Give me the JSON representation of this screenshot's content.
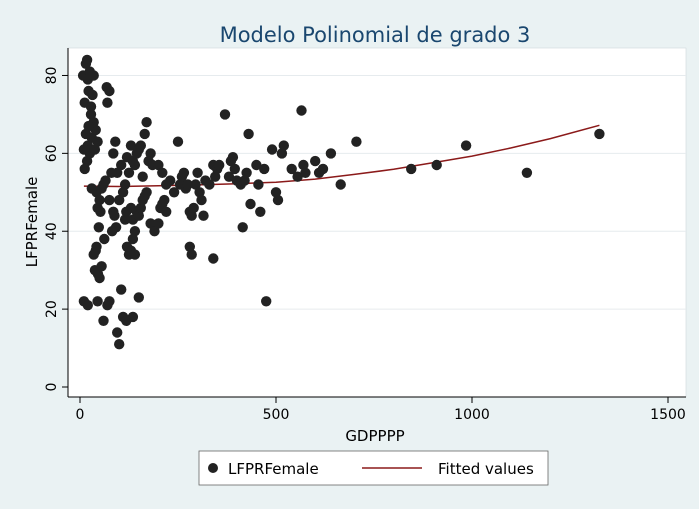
{
  "chart_data": {
    "type": "scatter",
    "title": "Modelo Polinomial de grado 3",
    "xlabel": "GDPPPP",
    "ylabel": "LFPRFemale",
    "xlim": [
      0,
      1500
    ],
    "ylim": [
      0,
      85
    ],
    "xticks": [
      0,
      500,
      1000,
      1500
    ],
    "yticks": [
      0,
      20,
      40,
      60,
      80
    ],
    "grid": "horizontal",
    "legend_position": "bottom",
    "colors": {
      "background": "#eaf2f3",
      "plot_background": "#ffffff",
      "markers": "#222222",
      "fit_line": "#8b1a1a",
      "title": "#1a476f"
    },
    "series": [
      {
        "name": "LFPRFemale",
        "type": "scatter",
        "points": [
          [
            8,
            80
          ],
          [
            12,
            73
          ],
          [
            15,
            83
          ],
          [
            18,
            84
          ],
          [
            20,
            79
          ],
          [
            22,
            76
          ],
          [
            25,
            81
          ],
          [
            28,
            72
          ],
          [
            32,
            75
          ],
          [
            35,
            80
          ],
          [
            15,
            65
          ],
          [
            20,
            62
          ],
          [
            25,
            60
          ],
          [
            12,
            56
          ],
          [
            18,
            58
          ],
          [
            30,
            64
          ],
          [
            35,
            68
          ],
          [
            40,
            66
          ],
          [
            28,
            70
          ],
          [
            22,
            67
          ],
          [
            10,
            61
          ],
          [
            38,
            61
          ],
          [
            45,
            63
          ],
          [
            42,
            50
          ],
          [
            50,
            48
          ],
          [
            55,
            51
          ],
          [
            30,
            51
          ],
          [
            60,
            52
          ],
          [
            65,
            53
          ],
          [
            70,
            73
          ],
          [
            75,
            76
          ],
          [
            68,
            77
          ],
          [
            45,
            46
          ],
          [
            48,
            41
          ],
          [
            52,
            45
          ],
          [
            40,
            35
          ],
          [
            35,
            34
          ],
          [
            42,
            36
          ],
          [
            46,
            29
          ],
          [
            38,
            30
          ],
          [
            50,
            28
          ],
          [
            55,
            31
          ],
          [
            62,
            38
          ],
          [
            10,
            22
          ],
          [
            20,
            21
          ],
          [
            45,
            22
          ],
          [
            60,
            17
          ],
          [
            70,
            21
          ],
          [
            75,
            22
          ],
          [
            95,
            14
          ],
          [
            100,
            11
          ],
          [
            105,
            25
          ],
          [
            110,
            18
          ],
          [
            118,
            17
          ],
          [
            135,
            18
          ],
          [
            150,
            23
          ],
          [
            85,
            60
          ],
          [
            90,
            63
          ],
          [
            95,
            55
          ],
          [
            100,
            48
          ],
          [
            105,
            57
          ],
          [
            110,
            50
          ],
          [
            115,
            52
          ],
          [
            120,
            59
          ],
          [
            125,
            55
          ],
          [
            130,
            62
          ],
          [
            135,
            58
          ],
          [
            140,
            57
          ],
          [
            145,
            60
          ],
          [
            150,
            61
          ],
          [
            155,
            62
          ],
          [
            160,
            54
          ],
          [
            165,
            65
          ],
          [
            170,
            68
          ],
          [
            175,
            58
          ],
          [
            180,
            60
          ],
          [
            185,
            57
          ],
          [
            130,
            46
          ],
          [
            135,
            43
          ],
          [
            140,
            40
          ],
          [
            145,
            45
          ],
          [
            150,
            44
          ],
          [
            155,
            46
          ],
          [
            160,
            48
          ],
          [
            165,
            49
          ],
          [
            170,
            50
          ],
          [
            120,
            36
          ],
          [
            125,
            34
          ],
          [
            130,
            35
          ],
          [
            135,
            38
          ],
          [
            140,
            34
          ],
          [
            115,
            43
          ],
          [
            118,
            45
          ],
          [
            180,
            42
          ],
          [
            190,
            40
          ],
          [
            200,
            42
          ],
          [
            205,
            46
          ],
          [
            210,
            47
          ],
          [
            215,
            48
          ],
          [
            220,
            45
          ],
          [
            230,
            53
          ],
          [
            240,
            50
          ],
          [
            250,
            63
          ],
          [
            255,
            52
          ],
          [
            260,
            54
          ],
          [
            265,
            55
          ],
          [
            270,
            51
          ],
          [
            275,
            52
          ],
          [
            280,
            45
          ],
          [
            285,
            44
          ],
          [
            290,
            46
          ],
          [
            295,
            52
          ],
          [
            300,
            55
          ],
          [
            305,
            50
          ],
          [
            310,
            48
          ],
          [
            320,
            53
          ],
          [
            330,
            52
          ],
          [
            340,
            57
          ],
          [
            345,
            54
          ],
          [
            350,
            56
          ],
          [
            355,
            57
          ],
          [
            370,
            70
          ],
          [
            380,
            54
          ],
          [
            385,
            58
          ],
          [
            390,
            59
          ],
          [
            395,
            56
          ],
          [
            400,
            53
          ],
          [
            410,
            52
          ],
          [
            415,
            41
          ],
          [
            420,
            53
          ],
          [
            425,
            55
          ],
          [
            430,
            65
          ],
          [
            435,
            47
          ],
          [
            450,
            57
          ],
          [
            455,
            52
          ],
          [
            460,
            45
          ],
          [
            470,
            56
          ],
          [
            475,
            22
          ],
          [
            490,
            61
          ],
          [
            500,
            50
          ],
          [
            505,
            48
          ],
          [
            515,
            60
          ],
          [
            520,
            62
          ],
          [
            540,
            56
          ],
          [
            555,
            54
          ],
          [
            565,
            71
          ],
          [
            570,
            57
          ],
          [
            575,
            55
          ],
          [
            600,
            58
          ],
          [
            610,
            55
          ],
          [
            620,
            56
          ],
          [
            640,
            60
          ],
          [
            665,
            52
          ],
          [
            705,
            63
          ],
          [
            845,
            56
          ],
          [
            910,
            57
          ],
          [
            985,
            62
          ],
          [
            1140,
            55
          ],
          [
            1325,
            65
          ],
          [
            280,
            36
          ],
          [
            285,
            34
          ],
          [
            340,
            33
          ],
          [
            315,
            44
          ],
          [
            200,
            57
          ],
          [
            210,
            55
          ],
          [
            220,
            52
          ],
          [
            80,
            55
          ],
          [
            75,
            48
          ],
          [
            85,
            45
          ],
          [
            88,
            44
          ],
          [
            92,
            41
          ],
          [
            82,
            40
          ]
        ]
      },
      {
        "name": "Fitted values",
        "type": "line",
        "x": [
          10,
          100,
          200,
          300,
          400,
          500,
          600,
          700,
          800,
          900,
          1000,
          1100,
          1200,
          1325
        ],
        "y": [
          51.6,
          51.5,
          51.7,
          51.9,
          52.2,
          52.6,
          53.4,
          54.6,
          55.9,
          57.6,
          59.3,
          61.4,
          63.8,
          67.2
        ]
      }
    ]
  }
}
